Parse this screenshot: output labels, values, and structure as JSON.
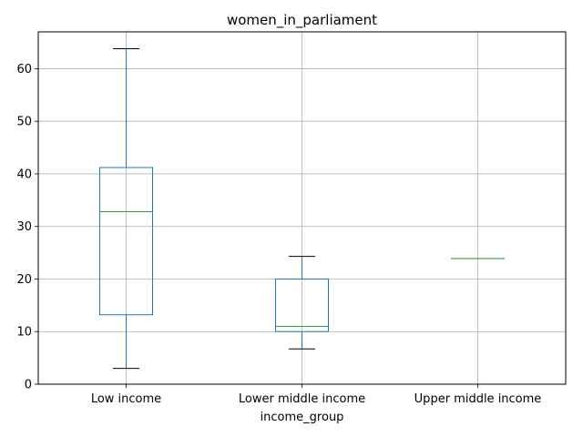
{
  "chart_data": {
    "type": "boxplot",
    "title": "women_in_parliament",
    "xlabel": "income_group",
    "ylabel": "",
    "ylim": [
      0,
      67
    ],
    "yticks": [
      0,
      10,
      20,
      30,
      40,
      50,
      60
    ],
    "grid": true,
    "categories": [
      "Low income",
      "Lower middle income",
      "Upper middle income"
    ],
    "boxes": [
      {
        "category": "Low income",
        "whisker_low": 3.0,
        "q1": 13.2,
        "median": 32.8,
        "q3": 41.2,
        "whisker_high": 63.8
      },
      {
        "category": "Lower middle income",
        "whisker_low": 6.7,
        "q1": 10.0,
        "median": 11.0,
        "q3": 20.0,
        "whisker_high": 24.3
      },
      {
        "category": "Upper middle income",
        "whisker_low": 23.9,
        "q1": 23.9,
        "median": 23.9,
        "q3": 23.9,
        "whisker_high": 23.9
      }
    ],
    "colors": {
      "box": "#1f77b4",
      "median": "#2ca02c",
      "whisker_cap": "#000000",
      "grid": "#b0b0b0"
    }
  }
}
